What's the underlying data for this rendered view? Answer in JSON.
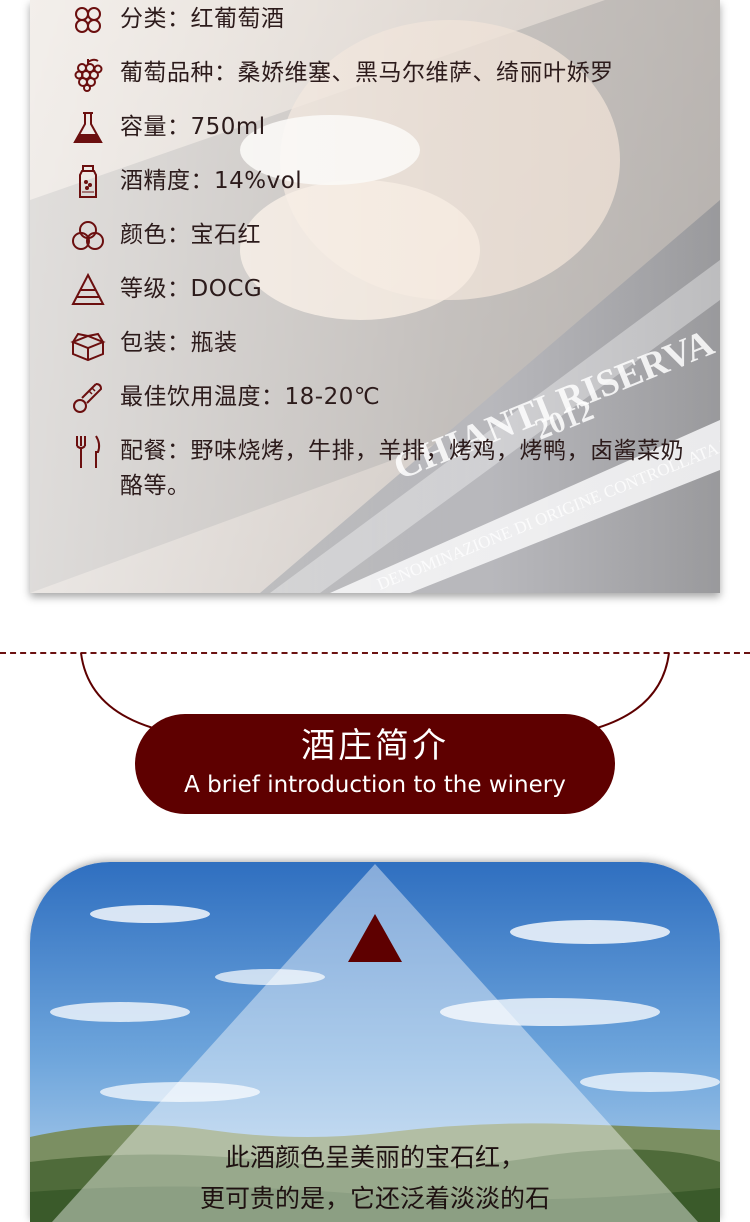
{
  "specs": [
    {
      "icon": "grid-flower-icon",
      "text": "分类：红葡萄酒"
    },
    {
      "icon": "grape-icon",
      "text": "葡萄品种：桑娇维塞、黑马尔维萨、绮丽叶娇罗"
    },
    {
      "icon": "flask-icon",
      "text": "容量：750ml"
    },
    {
      "icon": "bottle-icon",
      "text": "酒精度：14%vol"
    },
    {
      "icon": "color-circles-icon",
      "text": "颜色：宝石红"
    },
    {
      "icon": "pyramid-icon",
      "text": "等级：DOCG"
    },
    {
      "icon": "box-icon",
      "text": "包装：瓶装"
    },
    {
      "icon": "thermometer-icon",
      "text": "最佳饮用温度：18-20℃"
    },
    {
      "icon": "fork-knife-icon",
      "text": "配餐：野味烧烤，牛排，羊排，烤鸡，烤鸭，卤酱菜奶酪等。"
    }
  ],
  "bottle_label": {
    "line1": "CHIANTI RISERVA",
    "line2": "DENOMINAZIONE DI ORIGINE CONTROLLATA E GARANTITA",
    "year": "2012"
  },
  "section": {
    "title_cn": "酒庄简介",
    "title_en": "A brief introduction to the winery"
  },
  "intro_lines": [
    "此酒颜色呈美丽的宝石红，",
    "更可贵的是，它还泛着淡淡的石"
  ],
  "colors": {
    "accent": "#5e0000",
    "icon": "#6b0f0f",
    "dash": "#6b1111"
  }
}
